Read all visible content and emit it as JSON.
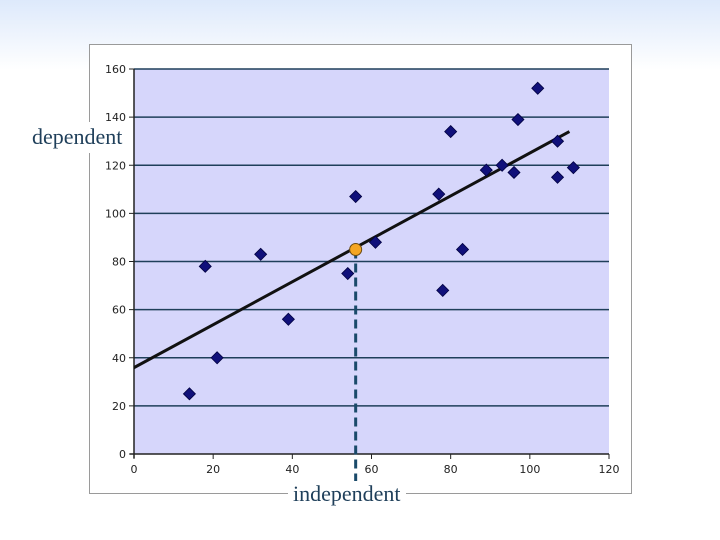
{
  "chart_data": {
    "type": "scatter",
    "title": "",
    "xlabel": "independent",
    "ylabel": "dependent",
    "xlim": [
      0,
      120
    ],
    "ylim": [
      0,
      160
    ],
    "xticks": [
      0,
      20,
      40,
      60,
      80,
      100,
      120
    ],
    "yticks": [
      0,
      20,
      40,
      60,
      80,
      100,
      120,
      140,
      160
    ],
    "grid": "horizontal",
    "points": [
      {
        "x": 14,
        "y": 25
      },
      {
        "x": 18,
        "y": 78
      },
      {
        "x": 21,
        "y": 40
      },
      {
        "x": 32,
        "y": 83
      },
      {
        "x": 39,
        "y": 56
      },
      {
        "x": 54,
        "y": 75
      },
      {
        "x": 56,
        "y": 107
      },
      {
        "x": 61,
        "y": 88
      },
      {
        "x": 77,
        "y": 108
      },
      {
        "x": 78,
        "y": 68
      },
      {
        "x": 80,
        "y": 134
      },
      {
        "x": 83,
        "y": 85
      },
      {
        "x": 89,
        "y": 118
      },
      {
        "x": 93,
        "y": 120
      },
      {
        "x": 96,
        "y": 117
      },
      {
        "x": 97,
        "y": 139
      },
      {
        "x": 102,
        "y": 152
      },
      {
        "x": 107,
        "y": 130
      },
      {
        "x": 107,
        "y": 115
      },
      {
        "x": 111,
        "y": 119
      }
    ],
    "regression_line": {
      "x": [
        -1,
        110
      ],
      "y": [
        35,
        134
      ]
    },
    "highlight_point": {
      "x": 56,
      "y": 85
    },
    "drop_line_x": 56,
    "colors": {
      "plot_background": "#d6d6fb",
      "gridline": "#1f3f5a",
      "marker": "#10107a",
      "regression_line": "#111111",
      "highlight": "#f5a623",
      "drop_line": "#1a4a6a"
    }
  }
}
